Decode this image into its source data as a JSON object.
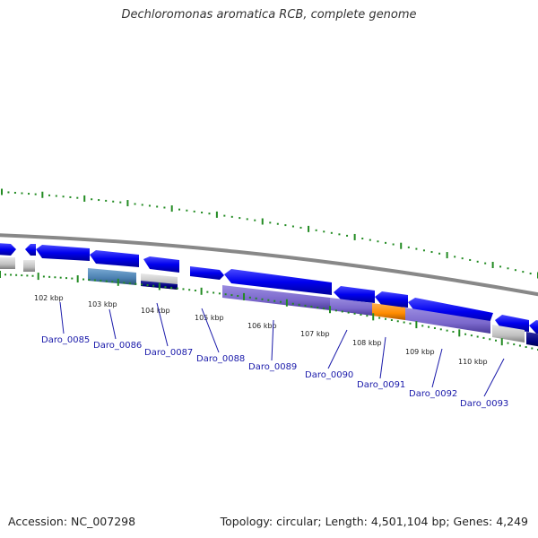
{
  "title": "Dechloromonas aromatica RCB, complete genome",
  "footer": {
    "accession": "Accession: NC_007298",
    "topology": "Topology: circular; Length: 4,501,104 bp; Genes: 4,249"
  },
  "kbp_ticks": [
    "102 kbp",
    "103 kbp",
    "104 kbp",
    "105 kbp",
    "106 kbp",
    "107 kbp",
    "108 kbp",
    "109 kbp",
    "110 kbp"
  ],
  "genes": [
    "Daro_0085",
    "Daro_0086",
    "Daro_0087",
    "Daro_0088",
    "Daro_0089",
    "Daro_0090",
    "Daro_0091",
    "Daro_0092",
    "Daro_0093"
  ],
  "colors": {
    "forward_cds": "#0000ee",
    "cog_purple": "#7b68cc",
    "cog_orange": "#ff8c00",
    "cog_steelblue": "#4a7fb0",
    "cog_gray": "#c0c0c0",
    "cog_navy": "#000080",
    "tick_green": "#228b22",
    "label_blue": "#1a1aaa",
    "backbone": "#888888"
  }
}
